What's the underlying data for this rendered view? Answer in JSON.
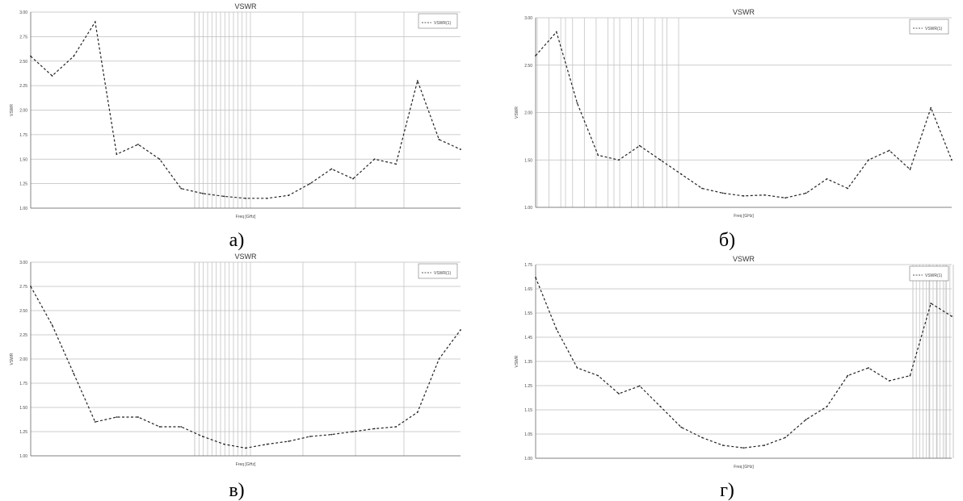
{
  "chart_data": [
    {
      "type": "line",
      "caption": "а)",
      "title": "VSWR",
      "ylabel": "VSWR",
      "xlabel": "Freq [GHz]",
      "ylim": [
        1.0,
        3.0
      ],
      "yticks": [
        "3.00",
        "2.75",
        "2.50",
        "2.25",
        "2.00",
        "1.75",
        "1.50",
        "1.25",
        "1.00"
      ],
      "x": [
        0,
        0.05,
        0.1,
        0.15,
        0.2,
        0.25,
        0.3,
        0.35,
        0.4,
        0.45,
        0.5,
        0.55,
        0.6,
        0.65,
        0.7,
        0.75,
        0.8,
        0.85,
        0.9,
        0.95,
        1.0
      ],
      "series": [
        {
          "name": "VSWR(1)",
          "values": [
            2.55,
            2.35,
            2.55,
            2.9,
            1.55,
            1.65,
            1.5,
            1.2,
            1.15,
            1.12,
            1.1,
            1.1,
            1.13,
            1.25,
            1.4,
            1.3,
            1.5,
            1.45,
            2.3,
            1.7,
            1.6
          ]
        }
      ]
    },
    {
      "type": "line",
      "caption": "б)",
      "title": "VSWR",
      "ylabel": "VSWR",
      "xlabel": "Freq [GHz]",
      "ylim": [
        1.0,
        3.0
      ],
      "yticks": [
        "3.00",
        "2.50",
        "2.00",
        "1.50",
        "1.00"
      ],
      "x": [
        0,
        0.05,
        0.1,
        0.15,
        0.2,
        0.25,
        0.3,
        0.35,
        0.4,
        0.45,
        0.5,
        0.55,
        0.6,
        0.65,
        0.7,
        0.75,
        0.8,
        0.85,
        0.9,
        0.95,
        1.0
      ],
      "series": [
        {
          "name": "VSWR(1)",
          "values": [
            2.6,
            2.85,
            2.1,
            1.55,
            1.5,
            1.65,
            1.5,
            1.35,
            1.2,
            1.15,
            1.12,
            1.13,
            1.1,
            1.15,
            1.3,
            1.2,
            1.5,
            1.6,
            1.4,
            2.05,
            1.5
          ]
        }
      ]
    },
    {
      "type": "line",
      "caption": "в)",
      "title": "VSWR",
      "ylabel": "VSWR",
      "xlabel": "Freq [GHz]",
      "ylim": [
        1.0,
        3.0
      ],
      "yticks": [
        "3.00",
        "2.75",
        "2.50",
        "2.25",
        "2.00",
        "1.75",
        "1.50",
        "1.25",
        "1.00"
      ],
      "x": [
        0,
        0.05,
        0.1,
        0.15,
        0.2,
        0.25,
        0.3,
        0.35,
        0.4,
        0.45,
        0.5,
        0.55,
        0.6,
        0.65,
        0.7,
        0.75,
        0.8,
        0.85,
        0.9,
        0.95,
        1.0
      ],
      "series": [
        {
          "name": "VSWR(1)",
          "values": [
            2.75,
            2.35,
            1.85,
            1.35,
            1.4,
            1.4,
            1.3,
            1.3,
            1.2,
            1.12,
            1.08,
            1.12,
            1.15,
            1.2,
            1.22,
            1.25,
            1.28,
            1.3,
            1.45,
            2.0,
            2.3
          ]
        }
      ]
    },
    {
      "type": "line",
      "caption": "г)",
      "title": "VSWR",
      "ylabel": "VSWR",
      "xlabel": "Freq [GHz]",
      "ylim": [
        1.0,
        1.75
      ],
      "yticks": [
        "1.75",
        "1.65",
        "1.55",
        "1.45",
        "1.35",
        "1.25",
        "1.15",
        "1.05",
        "1.00"
      ],
      "x": [
        0,
        0.05,
        0.1,
        0.15,
        0.2,
        0.25,
        0.3,
        0.35,
        0.4,
        0.45,
        0.5,
        0.55,
        0.6,
        0.65,
        0.7,
        0.75,
        0.8,
        0.85,
        0.9,
        0.95,
        1.0
      ],
      "series": [
        {
          "name": "VSWR(1)",
          "values": [
            1.7,
            1.5,
            1.35,
            1.32,
            1.25,
            1.28,
            1.2,
            1.12,
            1.08,
            1.05,
            1.04,
            1.05,
            1.08,
            1.15,
            1.2,
            1.32,
            1.35,
            1.3,
            1.32,
            1.6,
            1.55
          ]
        }
      ]
    }
  ]
}
